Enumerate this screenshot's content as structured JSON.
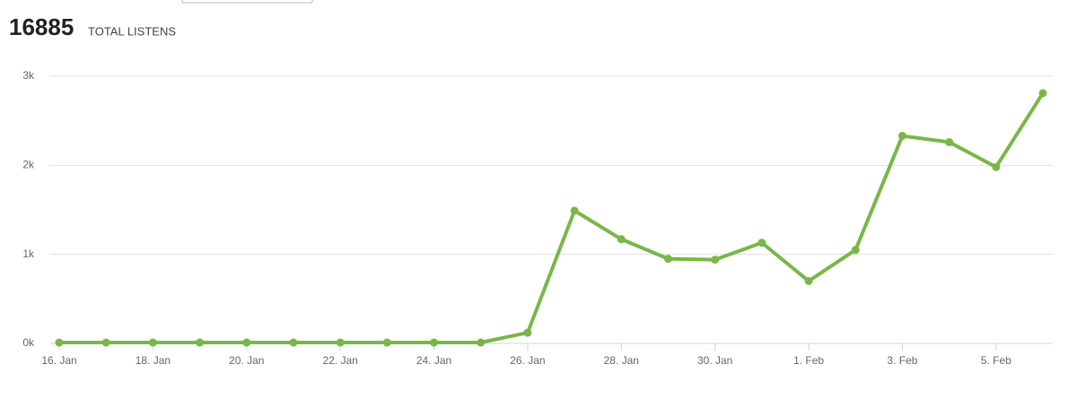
{
  "header": {
    "total": "16885",
    "label": "TOTAL LISTENS"
  },
  "chart_data": {
    "type": "line",
    "categories": [
      "16. Jan",
      null,
      "18. Jan",
      null,
      "20. Jan",
      null,
      "22. Jan",
      null,
      "24. Jan",
      null,
      "26. Jan",
      null,
      "28. Jan",
      null,
      "30. Jan",
      null,
      "1. Feb",
      null,
      "3. Feb",
      null,
      "5. Feb",
      null
    ],
    "series": [
      {
        "color": "#7ab648",
        "values": [
          10,
          10,
          10,
          10,
          10,
          10,
          10,
          10,
          10,
          10,
          120,
          1490,
          1170,
          950,
          940,
          1130,
          700,
          1050,
          2330,
          2260,
          1980,
          2810
        ]
      }
    ],
    "ylim": [
      0,
      3000
    ],
    "yticks": [
      {
        "value": 0,
        "label": "0k"
      },
      {
        "value": 1000,
        "label": "1k"
      },
      {
        "value": 2000,
        "label": "2k"
      },
      {
        "value": 3000,
        "label": "3k"
      }
    ],
    "grid": true
  }
}
